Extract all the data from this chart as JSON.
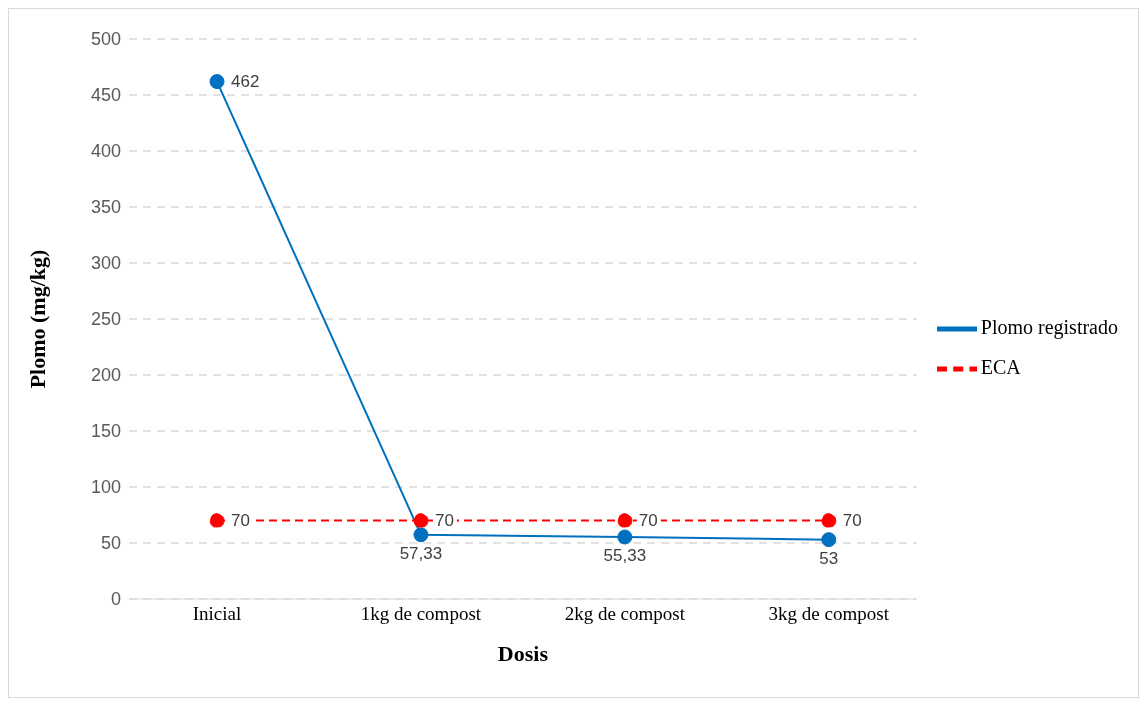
{
  "chart_data": {
    "type": "line",
    "xlabel": "Dosis",
    "ylabel": "Plomo (mg/kg)",
    "categories": [
      "Inicial",
      "1kg de compost",
      "2kg de compost",
      "3kg de compost"
    ],
    "series": [
      {
        "name": "Plomo registrado",
        "color": "#0070c0",
        "values": [
          462,
          57.33,
          55.33,
          53
        ],
        "value_labels": [
          "462",
          "57,33",
          "55,33",
          "53"
        ],
        "line_style": "solid"
      },
      {
        "name": "ECA",
        "color": "#ff0000",
        "values": [
          70,
          70,
          70,
          70
        ],
        "value_labels": [
          "70",
          "70",
          "70",
          "70"
        ],
        "line_style": "dashed"
      }
    ],
    "ylim": [
      0,
      500
    ],
    "yticks": [
      0,
      50,
      100,
      150,
      200,
      250,
      300,
      350,
      400,
      450,
      500
    ],
    "grid": "y",
    "legend": "right",
    "marker": "circle"
  }
}
